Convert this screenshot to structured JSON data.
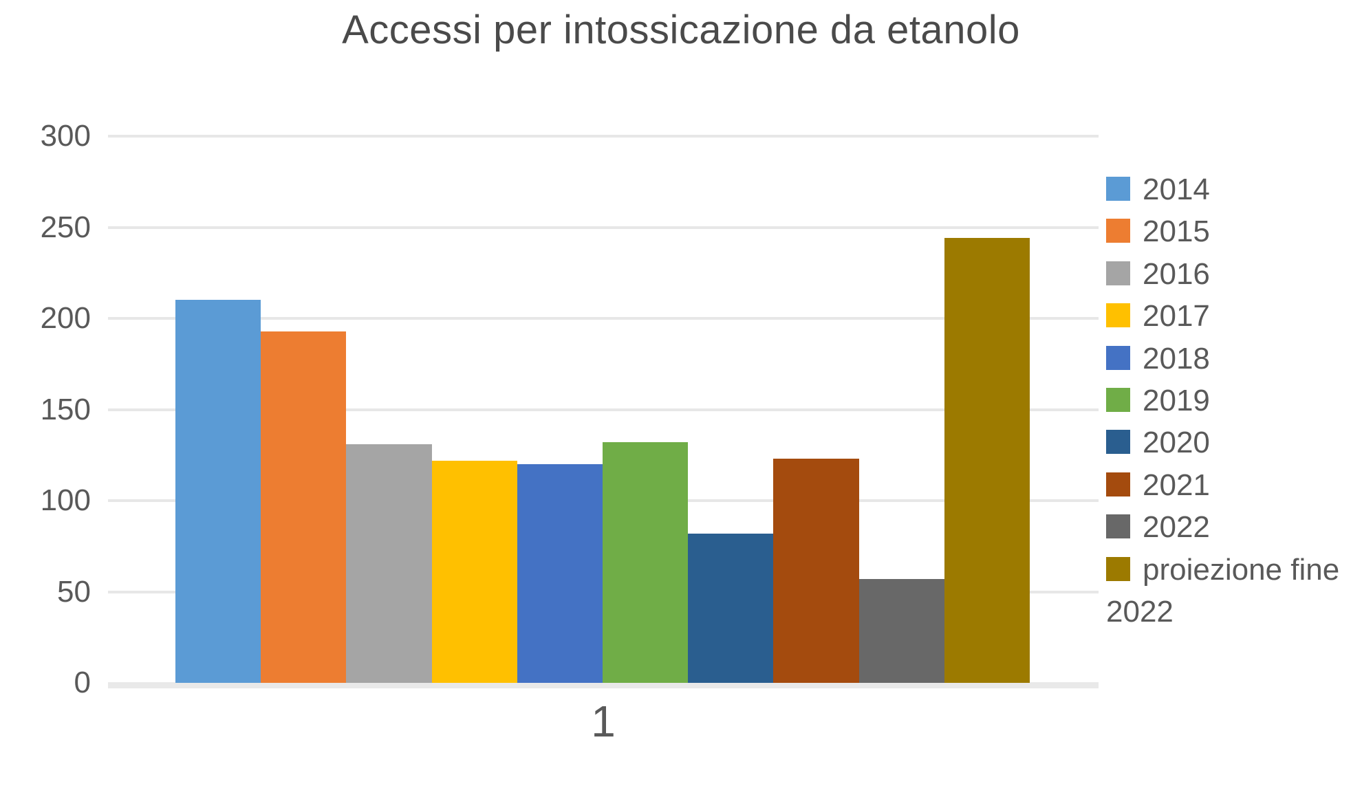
{
  "chart_data": {
    "type": "bar",
    "title": "Accessi per intossicazione da etanolo",
    "categories": [
      "1"
    ],
    "series": [
      {
        "name": "2014",
        "values": [
          210
        ],
        "color": "#5B9BD5"
      },
      {
        "name": "2015",
        "values": [
          193
        ],
        "color": "#ED7D31"
      },
      {
        "name": "2016",
        "values": [
          131
        ],
        "color": "#A5A5A5"
      },
      {
        "name": "2017",
        "values": [
          122
        ],
        "color": "#FFC000"
      },
      {
        "name": "2018",
        "values": [
          120
        ],
        "color": "#4472C4"
      },
      {
        "name": "2019",
        "values": [
          132
        ],
        "color": "#70AD47"
      },
      {
        "name": "2020",
        "values": [
          82
        ],
        "color": "#2A5E8F"
      },
      {
        "name": "2021",
        "values": [
          123
        ],
        "color": "#A44B0E"
      },
      {
        "name": "2022",
        "values": [
          57
        ],
        "color": "#686868"
      },
      {
        "name": "proiezione fine 2022",
        "values": [
          244
        ],
        "color": "#9C7A00"
      }
    ],
    "xlabel": "",
    "ylabel": "",
    "ylim": [
      0,
      300
    ],
    "ytick_step": 50,
    "grid": true,
    "legend_position": "right",
    "colors": {
      "title_text": "#4a4a4a",
      "axis_text": "#595959",
      "gridline": "#e7e7e7"
    }
  }
}
